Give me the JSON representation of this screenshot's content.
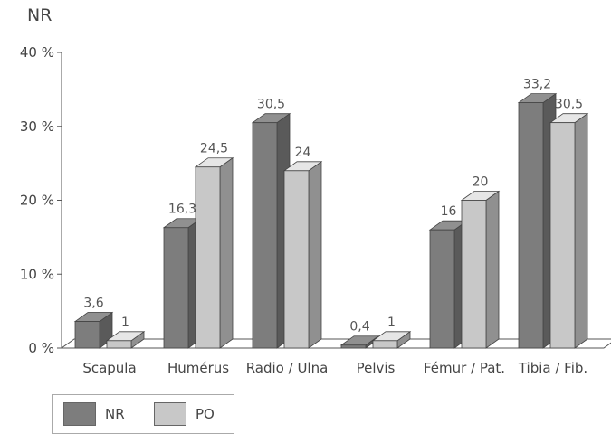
{
  "chart_data": {
    "type": "bar",
    "title": "NR",
    "categories": [
      "Scapula",
      "Humérus",
      "Radio / Ulna",
      "Pelvis",
      "Fémur / Pat.",
      "Tibia / Fib."
    ],
    "series": [
      {
        "name": "NR",
        "values": [
          3.6,
          16.3,
          30.5,
          0.4,
          16,
          33.2
        ],
        "labels": [
          "3,6",
          "16,3",
          "30,5",
          "0,4",
          "16",
          "33,2"
        ]
      },
      {
        "name": "PO",
        "values": [
          1,
          24.5,
          24,
          1,
          20,
          30.5
        ],
        "labels": [
          "1",
          "24,5",
          "24",
          "1",
          "20",
          "30,5"
        ]
      }
    ],
    "y_ticks": [
      "0 %",
      "10 %",
      "20 %",
      "30 %",
      "40 %"
    ],
    "ylim": [
      0,
      40
    ],
    "grid": false,
    "legend_position": "bottom-left",
    "colors": {
      "NR": "#7d7d7d",
      "PO": "#c8c8c8"
    }
  }
}
